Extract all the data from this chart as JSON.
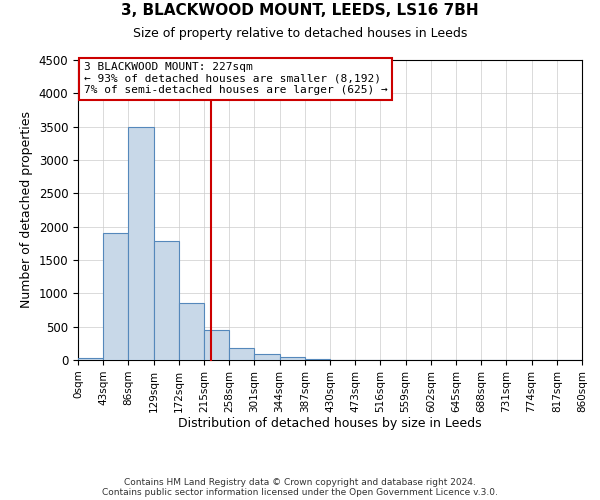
{
  "title": "3, BLACKWOOD MOUNT, LEEDS, LS16 7BH",
  "subtitle": "Size of property relative to detached houses in Leeds",
  "xlabel": "Distribution of detached houses by size in Leeds",
  "ylabel": "Number of detached properties",
  "bin_edges": [
    0,
    43,
    86,
    129,
    172,
    215,
    258,
    301,
    344,
    387,
    430,
    473,
    516,
    559,
    602,
    645,
    688,
    731,
    774,
    817,
    860
  ],
  "bin_labels": [
    "0sqm",
    "43sqm",
    "86sqm",
    "129sqm",
    "172sqm",
    "215sqm",
    "258sqm",
    "301sqm",
    "344sqm",
    "387sqm",
    "430sqm",
    "473sqm",
    "516sqm",
    "559sqm",
    "602sqm",
    "645sqm",
    "688sqm",
    "731sqm",
    "774sqm",
    "817sqm",
    "860sqm"
  ],
  "counts": [
    30,
    1900,
    3500,
    1780,
    850,
    450,
    185,
    95,
    40,
    20,
    0,
    0,
    0,
    0,
    0,
    0,
    0,
    0,
    0,
    0
  ],
  "bar_color": "#c8d8e8",
  "bar_edge_color": "#5588bb",
  "property_value": 227,
  "vline_color": "#cc0000",
  "annotation_line1": "3 BLACKWOOD MOUNT: 227sqm",
  "annotation_line2": "← 93% of detached houses are smaller (8,192)",
  "annotation_line3": "7% of semi-detached houses are larger (625) →",
  "annotation_box_color": "white",
  "annotation_box_edge": "#cc0000",
  "ylim": [
    0,
    4500
  ],
  "yticks": [
    0,
    500,
    1000,
    1500,
    2000,
    2500,
    3000,
    3500,
    4000,
    4500
  ],
  "footer_line1": "Contains HM Land Registry data © Crown copyright and database right 2024.",
  "footer_line2": "Contains public sector information licensed under the Open Government Licence v.3.0.",
  "background_color": "#ffffff",
  "grid_color": "#cccccc"
}
